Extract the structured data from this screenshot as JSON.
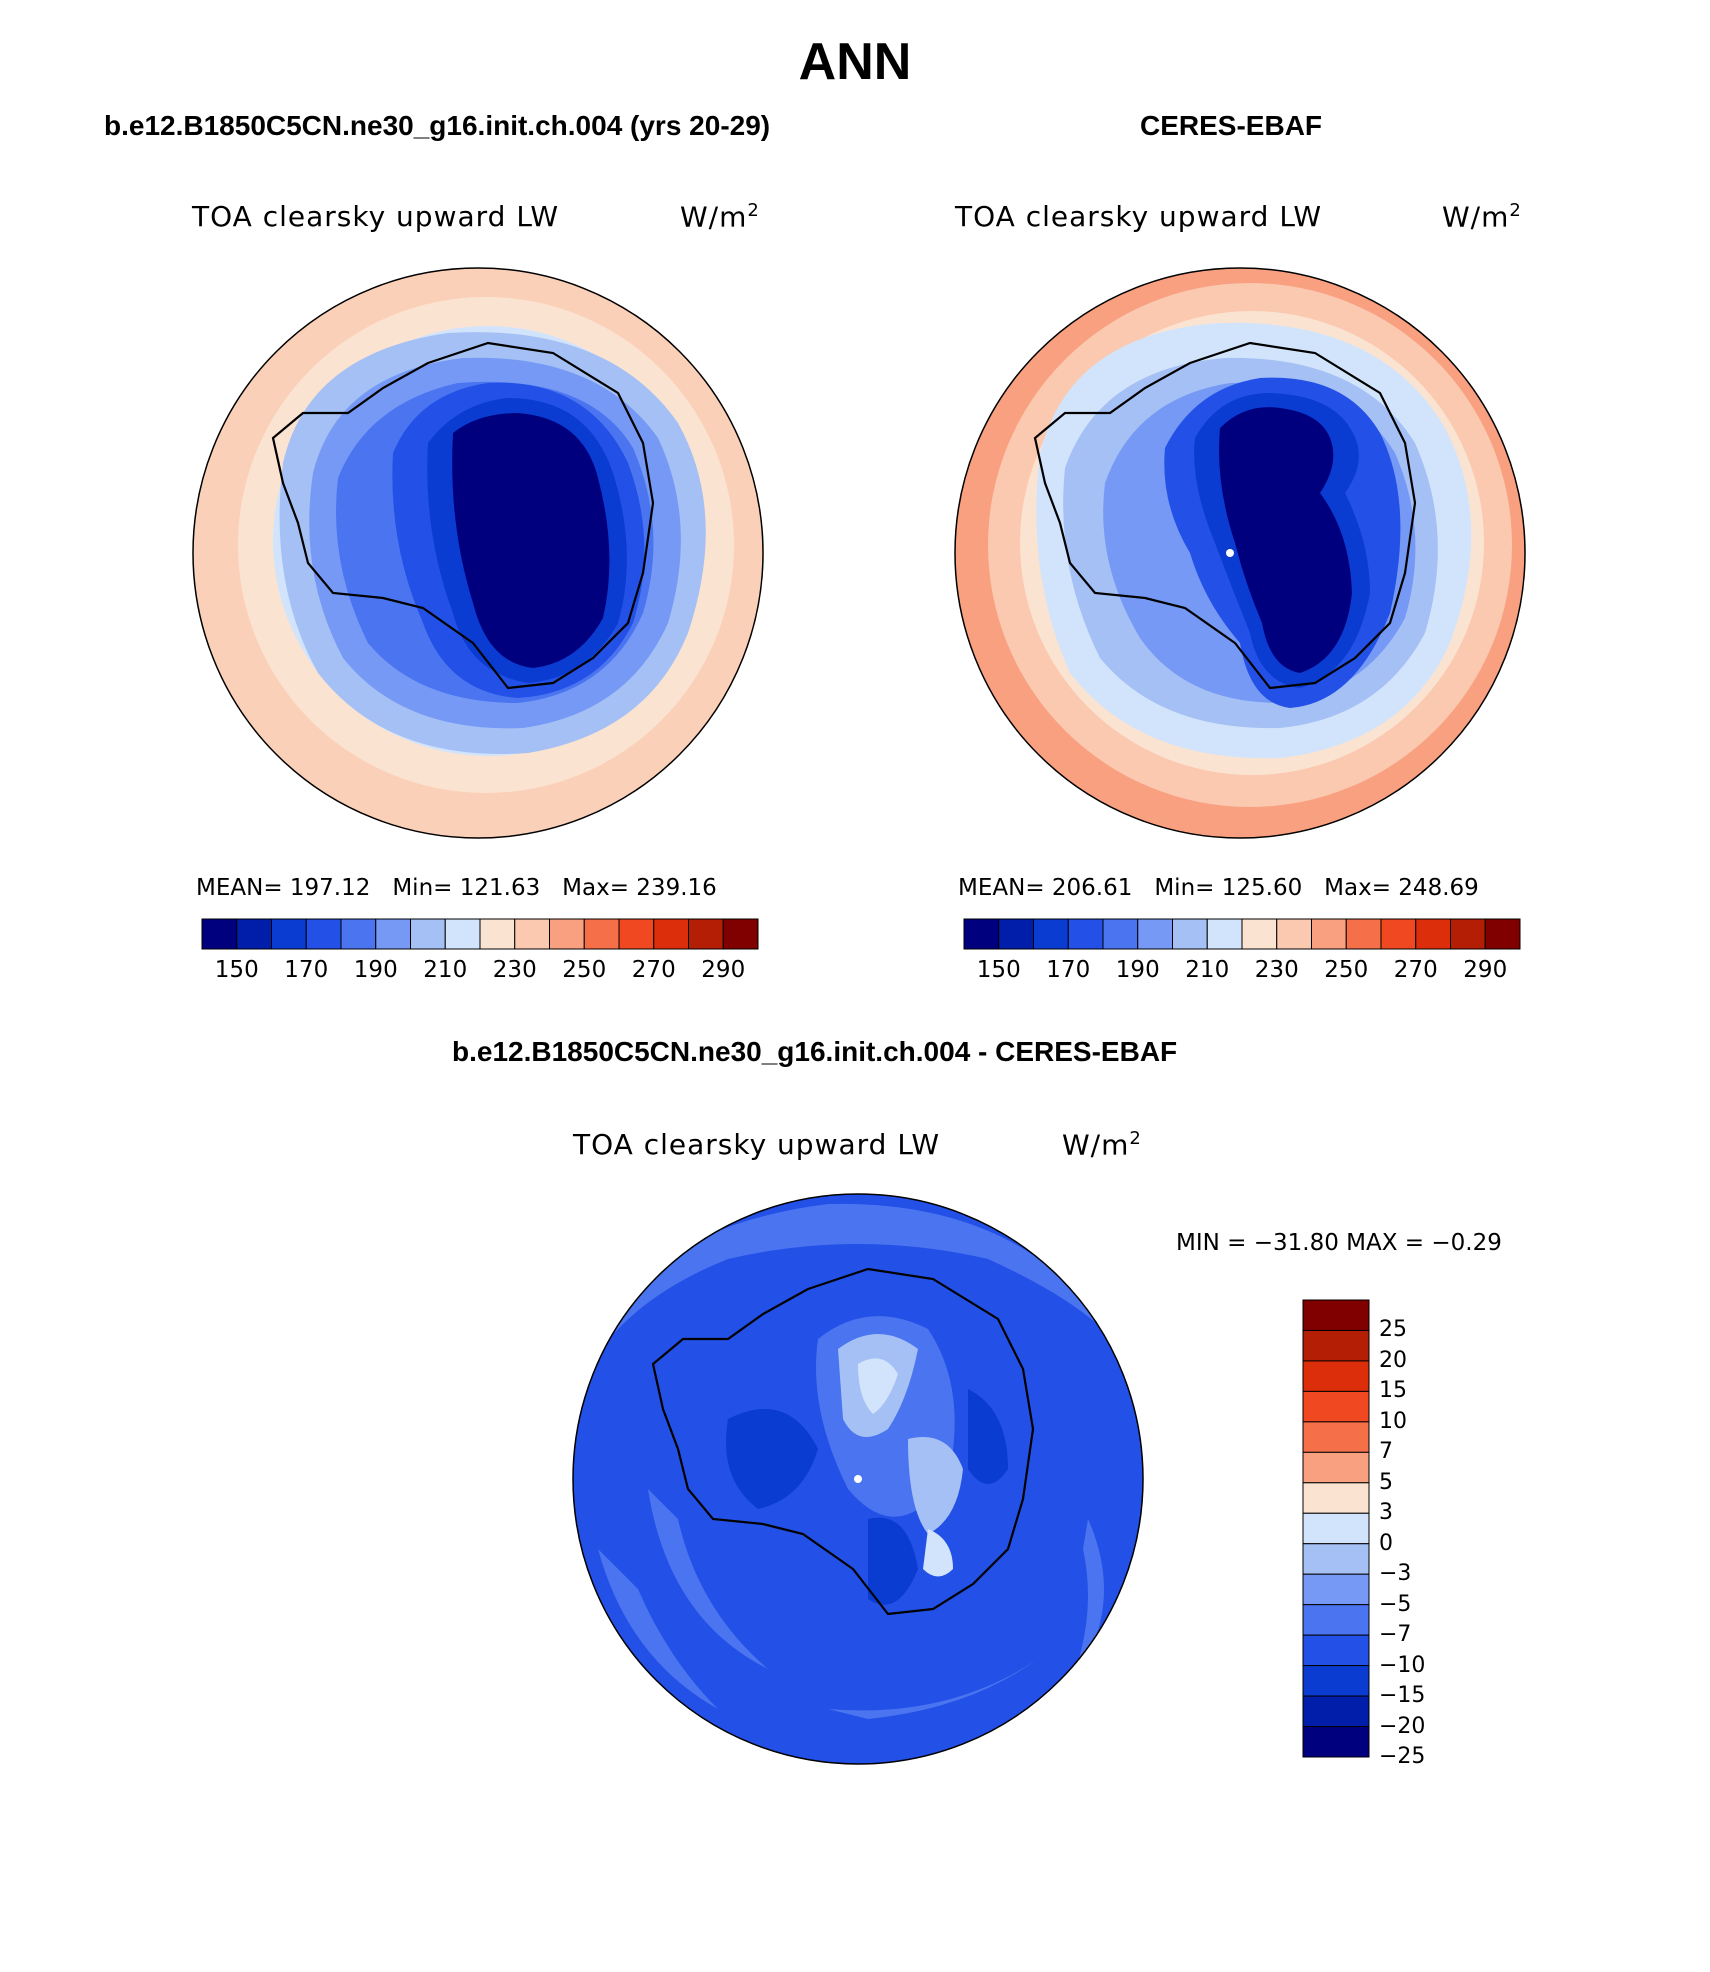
{
  "figure": {
    "season": "ANN"
  },
  "panels": {
    "model": {
      "case_title": "b.e12.B1850C5CN.ne30_g16.init.ch.004 (yrs 20-29)",
      "variable": "TOA clearsky upward LW",
      "units": "W/m",
      "units_sup": "2",
      "mean_label": "MEAN=",
      "mean": "197.12",
      "min_label": "Min=",
      "min": "121.63",
      "max_label": "Max=",
      "max": "239.16"
    },
    "obs": {
      "case_title": "CERES-EBAF",
      "variable": "TOA clearsky upward LW",
      "units": "W/m",
      "units_sup": "2",
      "mean_label": "MEAN=",
      "mean": "206.61",
      "min_label": "Min=",
      "min": "125.60",
      "max_label": "Max=",
      "max": "248.69"
    },
    "diff": {
      "case_title": "b.e12.B1850C5CN.ne30_g16.init.ch.004 - CERES-EBAF",
      "variable": "TOA clearsky upward LW",
      "units": "W/m",
      "units_sup": "2",
      "minmax_text": "MIN = −31.80 MAX =  −0.29"
    }
  },
  "colorbar_abs": {
    "colors": [
      "#00007f",
      "#001eaa",
      "#0a3cd2",
      "#2350e6",
      "#4a74f0",
      "#7599f5",
      "#a5c0f5",
      "#d2e4fb",
      "#fbe3d2",
      "#fbc8b0",
      "#f8a080",
      "#f57048",
      "#f04820",
      "#dc2e0a",
      "#b41e05",
      "#800000"
    ],
    "tick_labels": [
      "150",
      "170",
      "190",
      "210",
      "230",
      "250",
      "270",
      "290"
    ]
  },
  "colorbar_diff": {
    "colors": [
      "#800000",
      "#b41e05",
      "#dc2e0a",
      "#f04820",
      "#f57048",
      "#f8a080",
      "#fbe3d2",
      "#d2e4fb",
      "#a5c0f5",
      "#7599f5",
      "#4a74f0",
      "#2350e6",
      "#0a3cd2",
      "#001eaa",
      "#00007f"
    ],
    "tick_labels": [
      "25",
      "20",
      "15",
      "10",
      "7",
      "5",
      "3",
      "0",
      "−3",
      "−5",
      "−7",
      "−10",
      "−15",
      "−20",
      "−25"
    ]
  },
  "chart_data": [
    {
      "type": "heatmap",
      "projection": "south polar stereographic",
      "title": "TOA clearsky upward LW",
      "units": "W/m2",
      "mean": 197.12,
      "min": 121.63,
      "max": 239.16,
      "levels": [
        140,
        150,
        160,
        170,
        180,
        190,
        200,
        210,
        220,
        230,
        240,
        250,
        260,
        270,
        280,
        290
      ]
    },
    {
      "type": "heatmap",
      "projection": "south polar stereographic",
      "title": "TOA clearsky upward LW",
      "units": "W/m2",
      "mean": 206.61,
      "min": 125.6,
      "max": 248.69,
      "levels": [
        140,
        150,
        160,
        170,
        180,
        190,
        200,
        210,
        220,
        230,
        240,
        250,
        260,
        270,
        280,
        290
      ]
    },
    {
      "type": "heatmap",
      "projection": "south polar stereographic",
      "title": "TOA clearsky upward LW",
      "units": "W/m2",
      "min": -31.8,
      "max": -0.29,
      "levels": [
        -25,
        -20,
        -15,
        -10,
        -7,
        -5,
        -3,
        0,
        3,
        5,
        7,
        10,
        15,
        20,
        25
      ]
    }
  ]
}
